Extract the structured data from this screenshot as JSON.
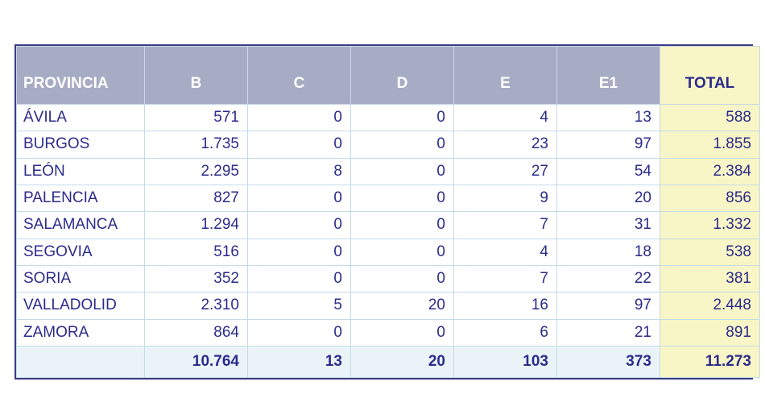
{
  "table": {
    "headers": [
      "PROVINCIA",
      "B",
      "C",
      "D",
      "E",
      "E1",
      "TOTAL"
    ],
    "rows": [
      [
        "ÁVILA",
        "571",
        "0",
        "0",
        "4",
        "13",
        "588"
      ],
      [
        "BURGOS",
        "1.735",
        "0",
        "0",
        "23",
        "97",
        "1.855"
      ],
      [
        "LEÓN",
        "2.295",
        "8",
        "0",
        "27",
        "54",
        "2.384"
      ],
      [
        "PALENCIA",
        "827",
        "0",
        "0",
        "9",
        "20",
        "856"
      ],
      [
        "SALAMANCA",
        "1.294",
        "0",
        "0",
        "7",
        "31",
        "1.332"
      ],
      [
        "SEGOVIA",
        "516",
        "0",
        "0",
        "4",
        "18",
        "538"
      ],
      [
        "SORIA",
        "352",
        "0",
        "0",
        "7",
        "22",
        "381"
      ],
      [
        "VALLADOLID",
        "2.310",
        "5",
        "20",
        "16",
        "97",
        "2.448"
      ],
      [
        "ZAMORA",
        "864",
        "0",
        "0",
        "6",
        "21",
        "891"
      ]
    ],
    "totals": [
      "",
      "10.764",
      "13",
      "20",
      "103",
      "373",
      "11.273"
    ]
  },
  "colors": {
    "header_bg": "#a7acc4",
    "header_text": "#ffffff",
    "total_column_bg": "#f8f6c6",
    "body_text": "#2b2b8c",
    "footer_bg": "#eaf4f8",
    "border": "#3a3a86"
  }
}
